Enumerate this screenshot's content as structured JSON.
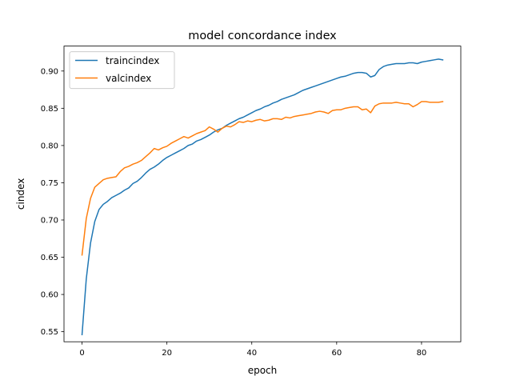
{
  "chart_data": {
    "type": "line",
    "title": "model concordance index",
    "xlabel": "epoch",
    "ylabel": "cindex",
    "xlim": [
      -4.25,
      89.25
    ],
    "ylim": [
      0.5365,
      0.9335
    ],
    "xticks": [
      0,
      20,
      40,
      60,
      80
    ],
    "yticks": [
      0.55,
      0.6,
      0.65,
      0.7,
      0.75,
      0.8,
      0.85,
      0.9
    ],
    "grid": false,
    "legend": "upper left",
    "series": [
      {
        "name": "traincindex",
        "color": "#1f77b4",
        "values": [
          0.546,
          0.621,
          0.669,
          0.698,
          0.714,
          0.721,
          0.725,
          0.73,
          0.733,
          0.736,
          0.74,
          0.743,
          0.749,
          0.752,
          0.757,
          0.763,
          0.768,
          0.771,
          0.775,
          0.78,
          0.784,
          0.787,
          0.79,
          0.793,
          0.796,
          0.8,
          0.802,
          0.806,
          0.808,
          0.811,
          0.814,
          0.818,
          0.821,
          0.823,
          0.827,
          0.83,
          0.833,
          0.836,
          0.838,
          0.841,
          0.844,
          0.847,
          0.849,
          0.852,
          0.854,
          0.857,
          0.859,
          0.862,
          0.864,
          0.866,
          0.868,
          0.871,
          0.874,
          0.876,
          0.878,
          0.88,
          0.882,
          0.884,
          0.886,
          0.888,
          0.89,
          0.892,
          0.893,
          0.895,
          0.897,
          0.898,
          0.898,
          0.897,
          0.892,
          0.894,
          0.902,
          0.906,
          0.908,
          0.909,
          0.91,
          0.91,
          0.91,
          0.911,
          0.911,
          0.91,
          0.912,
          0.913,
          0.914,
          0.915,
          0.916,
          0.915
        ]
      },
      {
        "name": "valcindex",
        "color": "#ff7f0e",
        "values": [
          0.653,
          0.702,
          0.729,
          0.744,
          0.749,
          0.754,
          0.756,
          0.757,
          0.758,
          0.765,
          0.77,
          0.772,
          0.775,
          0.777,
          0.78,
          0.785,
          0.79,
          0.796,
          0.794,
          0.797,
          0.799,
          0.803,
          0.806,
          0.809,
          0.812,
          0.81,
          0.813,
          0.816,
          0.818,
          0.82,
          0.825,
          0.822,
          0.818,
          0.823,
          0.826,
          0.825,
          0.828,
          0.832,
          0.831,
          0.833,
          0.832,
          0.834,
          0.835,
          0.833,
          0.834,
          0.836,
          0.836,
          0.835,
          0.838,
          0.837,
          0.839,
          0.84,
          0.841,
          0.842,
          0.843,
          0.845,
          0.846,
          0.845,
          0.843,
          0.847,
          0.848,
          0.848,
          0.85,
          0.851,
          0.852,
          0.852,
          0.848,
          0.849,
          0.844,
          0.853,
          0.856,
          0.857,
          0.857,
          0.857,
          0.858,
          0.857,
          0.856,
          0.856,
          0.852,
          0.855,
          0.859,
          0.859,
          0.858,
          0.858,
          0.858,
          0.859
        ]
      }
    ]
  }
}
